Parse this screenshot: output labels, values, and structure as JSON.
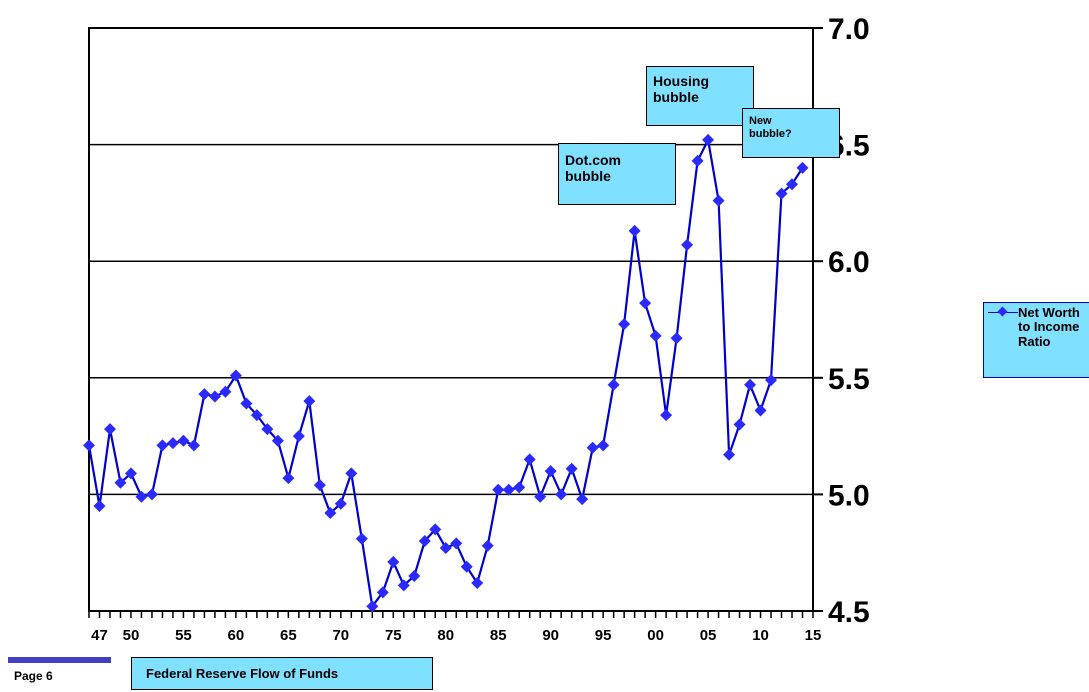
{
  "chart_data": {
    "type": "line",
    "series": [
      {
        "name": "Net Worth to Income Ratio",
        "x": [
          1946,
          1947,
          1948,
          1949,
          1950,
          1951,
          1952,
          1953,
          1954,
          1955,
          1956,
          1957,
          1958,
          1959,
          1960,
          1961,
          1962,
          1963,
          1964,
          1965,
          1966,
          1967,
          1968,
          1969,
          1970,
          1971,
          1972,
          1973,
          1974,
          1975,
          1976,
          1977,
          1978,
          1979,
          1980,
          1981,
          1982,
          1983,
          1984,
          1985,
          1986,
          1987,
          1988,
          1989,
          1990,
          1991,
          1992,
          1993,
          1994,
          1995,
          1996,
          1997,
          1998,
          1999,
          2000,
          2001,
          2002,
          2003,
          2004,
          2005,
          2006,
          2007,
          2008,
          2009,
          2010,
          2011,
          2012,
          2013,
          2014
        ],
        "values": [
          5.21,
          4.95,
          5.28,
          5.05,
          5.09,
          4.99,
          5.0,
          5.21,
          5.22,
          5.23,
          5.21,
          5.43,
          5.42,
          5.44,
          5.51,
          5.39,
          5.34,
          5.28,
          5.23,
          5.07,
          5.25,
          5.4,
          5.04,
          4.92,
          4.96,
          5.09,
          4.81,
          4.52,
          4.58,
          4.71,
          4.61,
          4.65,
          4.8,
          4.85,
          4.77,
          4.79,
          4.69,
          4.62,
          4.78,
          5.02,
          5.02,
          5.03,
          5.15,
          4.99,
          5.1,
          5.0,
          5.11,
          4.98,
          5.2,
          5.21,
          5.47,
          5.73,
          6.13,
          5.82,
          5.68,
          5.34,
          5.67,
          6.07,
          6.43,
          6.52,
          6.26,
          5.17,
          5.3,
          5.47,
          5.36,
          5.49,
          6.29,
          6.33,
          6.4
        ]
      }
    ],
    "xlim": [
      1946,
      2015
    ],
    "ylim": [
      4.5,
      7.0
    ],
    "y_ticks": [
      "7.0",
      "6.5",
      "6.0",
      "5.5",
      "5.0",
      "4.5"
    ],
    "x_tick_labels": [
      {
        "year": 1947,
        "label": "47"
      },
      {
        "year": 1950,
        "label": "50"
      },
      {
        "year": 1955,
        "label": "55"
      },
      {
        "year": 1960,
        "label": "60"
      },
      {
        "year": 1965,
        "label": "65"
      },
      {
        "year": 1970,
        "label": "70"
      },
      {
        "year": 1975,
        "label": "75"
      },
      {
        "year": 1980,
        "label": "80"
      },
      {
        "year": 1985,
        "label": "85"
      },
      {
        "year": 1990,
        "label": "90"
      },
      {
        "year": 1995,
        "label": "95"
      },
      {
        "year": 2000,
        "label": "00"
      },
      {
        "year": 2005,
        "label": "05"
      },
      {
        "year": 2010,
        "label": "10"
      },
      {
        "year": 2015,
        "label": "15"
      }
    ],
    "y_axis_side": "right",
    "grid": "horizontal",
    "legend_placement": "right",
    "line_color": "#0000cc",
    "marker_color": "#2a2aff",
    "annotation_color": "#7fe0ff",
    "annotations": [
      {
        "text": "Dot.com\nbubble"
      },
      {
        "text": "Housing\nbubble"
      },
      {
        "text": "New\nbubble?"
      }
    ]
  },
  "footer": {
    "page_label": "Page 6",
    "source": "Federal  Reserve Flow of Funds"
  }
}
